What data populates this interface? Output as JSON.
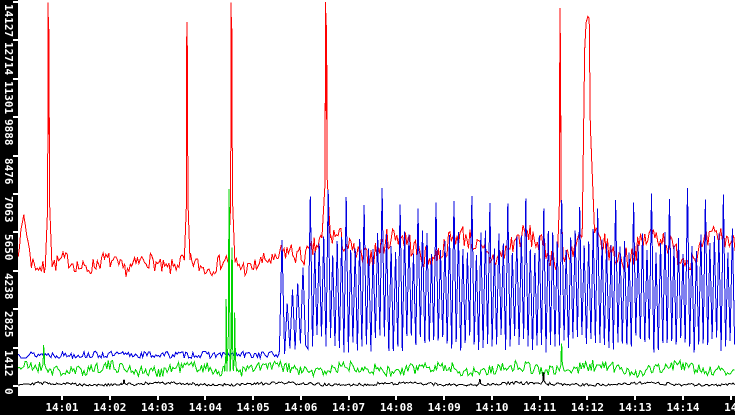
{
  "window": {
    "background": "#ffffff",
    "axis_background": "#000000",
    "axis_foreground": "#ffffff"
  },
  "chart_data": {
    "type": "line",
    "title": "",
    "xlabel": "",
    "ylabel": "",
    "grid": false,
    "legend": "none",
    "x_axis": {
      "unit": "time (HH:MM)",
      "start_minutes_after_1400": 0.08,
      "end_minutes_after_1400": 15.09,
      "ticks": [
        {
          "t": 1,
          "label": "14:01"
        },
        {
          "t": 2,
          "label": "14:02"
        },
        {
          "t": 3,
          "label": "14:03"
        },
        {
          "t": 4,
          "label": "14:04"
        },
        {
          "t": 5,
          "label": "14:05"
        },
        {
          "t": 6,
          "label": "14:06"
        },
        {
          "t": 7,
          "label": "14:07"
        },
        {
          "t": 8,
          "label": "14:08"
        },
        {
          "t": 9,
          "label": "14:09"
        },
        {
          "t": 10,
          "label": "14:10"
        },
        {
          "t": 11,
          "label": "14:11"
        },
        {
          "t": 12,
          "label": "14:12"
        },
        {
          "t": 13,
          "label": "14:13"
        },
        {
          "t": 14,
          "label": "14:14"
        },
        {
          "t": 15,
          "label": "14"
        }
      ]
    },
    "y_axis": {
      "min": 0,
      "max": 14127,
      "ticks": [
        {
          "value": 0,
          "label": "0"
        },
        {
          "value": 1412,
          "label": "1412"
        },
        {
          "value": 2825,
          "label": "2825"
        },
        {
          "value": 4238,
          "label": "4238"
        },
        {
          "value": 5650,
          "label": "5650"
        },
        {
          "value": 7063,
          "label": "7063"
        },
        {
          "value": 8476,
          "label": "8476"
        },
        {
          "value": 9888,
          "label": "9888"
        },
        {
          "value": 11301,
          "label": "11301"
        },
        {
          "value": 12714,
          "label": "12714"
        },
        {
          "value": 14127,
          "label": "14127"
        }
      ]
    },
    "render": {
      "step_minutes": 0.03
    },
    "series": [
      {
        "name": "red-series",
        "color": "#ff0000",
        "seed": 7,
        "segments": [
          {
            "t0": 0.08,
            "t1": 0.2,
            "v0": 4900,
            "v1": 6300,
            "noise": 160
          },
          {
            "t0": 0.2,
            "t1": 0.36,
            "v0": 6300,
            "v1": 4500,
            "noise": 160
          },
          {
            "t0": 0.36,
            "t1": 5.5,
            "v0": 4480,
            "v1": 4480,
            "noise": 300,
            "wob": [
              170,
              0.85,
              0
            ]
          },
          {
            "t0": 5.5,
            "t1": 6.3,
            "v0": 4650,
            "v1": 5100,
            "noise": 380,
            "wob": [
              200,
              0.8,
              1
            ]
          },
          {
            "t0": 6.3,
            "t1": 15.09,
            "v0": 5120,
            "v1": 5120,
            "noise": 430,
            "wob": [
              430,
              1.35,
              2
            ]
          }
        ],
        "spikes": [
          {
            "t": 0.72,
            "p": 14100,
            "w": 0.07
          },
          {
            "t": 3.62,
            "p": 13400,
            "w": 0.06
          },
          {
            "t": 4.55,
            "p": 14100,
            "w": 0.07
          },
          {
            "t": 6.53,
            "p": 14150,
            "w": 0.09
          },
          {
            "t": 11.43,
            "p": 13900,
            "w": 0.06
          },
          {
            "t": 12.02,
            "p": 13600,
            "w": 0.13,
            "flat": true
          }
        ]
      },
      {
        "name": "blue-series",
        "color": "#0000e0",
        "seed": 13,
        "segments": [
          {
            "t0": 0.08,
            "t1": 5.55,
            "v0": 1150,
            "v1": 1150,
            "noise": 130
          },
          {
            "t0": 5.55,
            "t1": 6.15,
            "osc": true,
            "lo0": 1250,
            "lo1": 1600,
            "hi0": 1700,
            "hi1": 5000,
            "loN": 150,
            "hiN": 450,
            "period": 0.11,
            "tallEvery": 5,
            "tall": 5600,
            "tallN": 300
          },
          {
            "t0": 6.15,
            "t1": 15.09,
            "osc": true,
            "lo0": 1550,
            "lo1": 1550,
            "hi0": 5250,
            "hi1": 5350,
            "loN": 330,
            "hiN": 480,
            "period": 0.094,
            "tallEvery": 4,
            "tall": 6900,
            "tallN": 420
          }
        ],
        "spikes": []
      },
      {
        "name": "green-series",
        "color": "#00d400",
        "seed": 21,
        "segments": [
          {
            "t0": 0.08,
            "t1": 15.09,
            "v0": 620,
            "v1": 640,
            "noise": 220,
            "wob": [
              110,
              1.7,
              0.5
            ]
          }
        ],
        "spikes": [
          {
            "t": 0.62,
            "p": 1500,
            "w": 0.05
          },
          {
            "t": 4.44,
            "p": 3200,
            "w": 0.035
          },
          {
            "t": 4.5,
            "p": 7250,
            "w": 0.05
          },
          {
            "t": 4.56,
            "p": 5100,
            "w": 0.04
          },
          {
            "t": 4.62,
            "p": 2700,
            "w": 0.035
          },
          {
            "t": 11.46,
            "p": 1560,
            "w": 0.05
          }
        ]
      },
      {
        "name": "black-series",
        "color": "#000000",
        "seed": 29,
        "segments": [
          {
            "t0": 0.08,
            "t1": 15.09,
            "v0": 70,
            "v1": 70,
            "noise": 55,
            "wob": [
              35,
              2.5,
              0
            ]
          }
        ],
        "spikes": [
          {
            "t": 2.3,
            "p": 230,
            "w": 0.05
          },
          {
            "t": 9.75,
            "p": 260,
            "w": 0.06
          },
          {
            "t": 11.08,
            "p": 520,
            "w": 0.05
          }
        ]
      }
    ]
  }
}
